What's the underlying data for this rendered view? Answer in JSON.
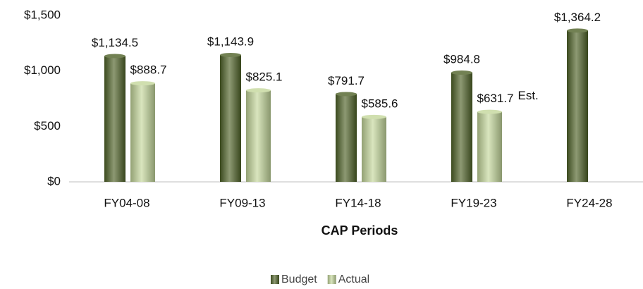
{
  "chart_data": {
    "type": "bar",
    "x_label": "CAP Periods",
    "categories": [
      "FY04-08",
      "FY09-13",
      "FY14-18",
      "FY19-23",
      "FY24-28"
    ],
    "series": [
      {
        "name": "Budget",
        "color": "#4f6228",
        "values": [
          1134.5,
          1143.9,
          791.7,
          984.8,
          1364.2
        ],
        "value_labels": [
          "$1,134.5",
          "$1,143.9",
          "$791.7",
          "$984.8",
          "$1,364.2"
        ]
      },
      {
        "name": "Actual",
        "color": "#c4d79b",
        "values": [
          888.7,
          825.1,
          585.6,
          631.7,
          null
        ],
        "value_labels": [
          "$888.7",
          "$825.1",
          "$585.6",
          "$631.7",
          null
        ]
      }
    ],
    "annotation": "Est.",
    "ylim": [
      0,
      1500
    ],
    "yticks": [
      {
        "value": 0,
        "label": "$0"
      },
      {
        "value": 500,
        "label": "$500"
      },
      {
        "value": 1000,
        "label": "$1,000"
      },
      {
        "value": 1500,
        "label": "$1,500"
      }
    ],
    "grid": false,
    "legend": "bottom"
  }
}
